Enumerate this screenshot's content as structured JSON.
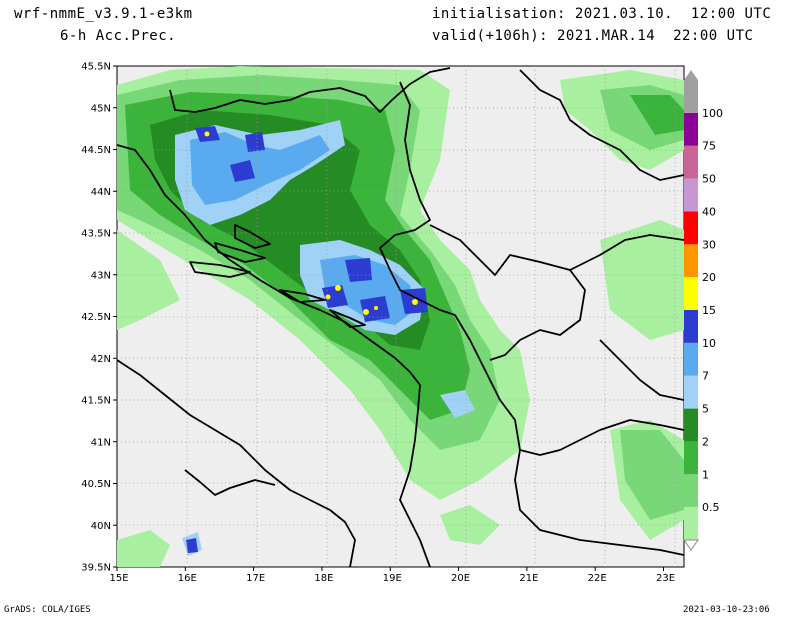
{
  "header": {
    "model": "wrf-nmmE_v3.9.1-e3km",
    "product": "6-h Acc.Prec.",
    "init": "initialisation: 2021.03.10.  12:00 UTC",
    "valid": "valid(+106h): 2021.MAR.14  22:00 UTC"
  },
  "axes": {
    "lat_labels": [
      "45.5N",
      "45N",
      "44.5N",
      "44N",
      "43.5N",
      "43N",
      "42.5N",
      "42N",
      "41.5N",
      "41N",
      "40.5N",
      "40N",
      "39.5N"
    ],
    "lat_values": [
      45.5,
      45,
      44.5,
      44,
      43.5,
      43,
      42.5,
      42,
      41.5,
      41,
      40.5,
      40,
      39.5
    ],
    "lon_labels": [
      "15E",
      "16E",
      "17E",
      "18E",
      "19E",
      "20E",
      "21E",
      "22E",
      "23E"
    ],
    "lon_values": [
      15,
      16,
      17,
      18,
      19,
      20,
      21,
      22,
      23
    ],
    "lon_range": [
      15,
      23.3
    ],
    "lat_range": [
      39.5,
      45.5
    ]
  },
  "colorbar": {
    "levels": [
      "0.5",
      "1",
      "2",
      "5",
      "7",
      "10",
      "15",
      "20",
      "30",
      "40",
      "50",
      "75",
      "100"
    ],
    "colors": [
      "#a8f0a0",
      "#78d878",
      "#3cb43c",
      "#258c25",
      "#a0d2f8",
      "#5aaaf0",
      "#2c3cd0",
      "#ffff00",
      "#ff9600",
      "#ff0000",
      "#c896d2",
      "#c86496",
      "#8c0096",
      "#a0a0a0"
    ]
  },
  "footer": {
    "left": "GrADS: COLA/IGES",
    "right": "2021-03-10-23:06"
  }
}
